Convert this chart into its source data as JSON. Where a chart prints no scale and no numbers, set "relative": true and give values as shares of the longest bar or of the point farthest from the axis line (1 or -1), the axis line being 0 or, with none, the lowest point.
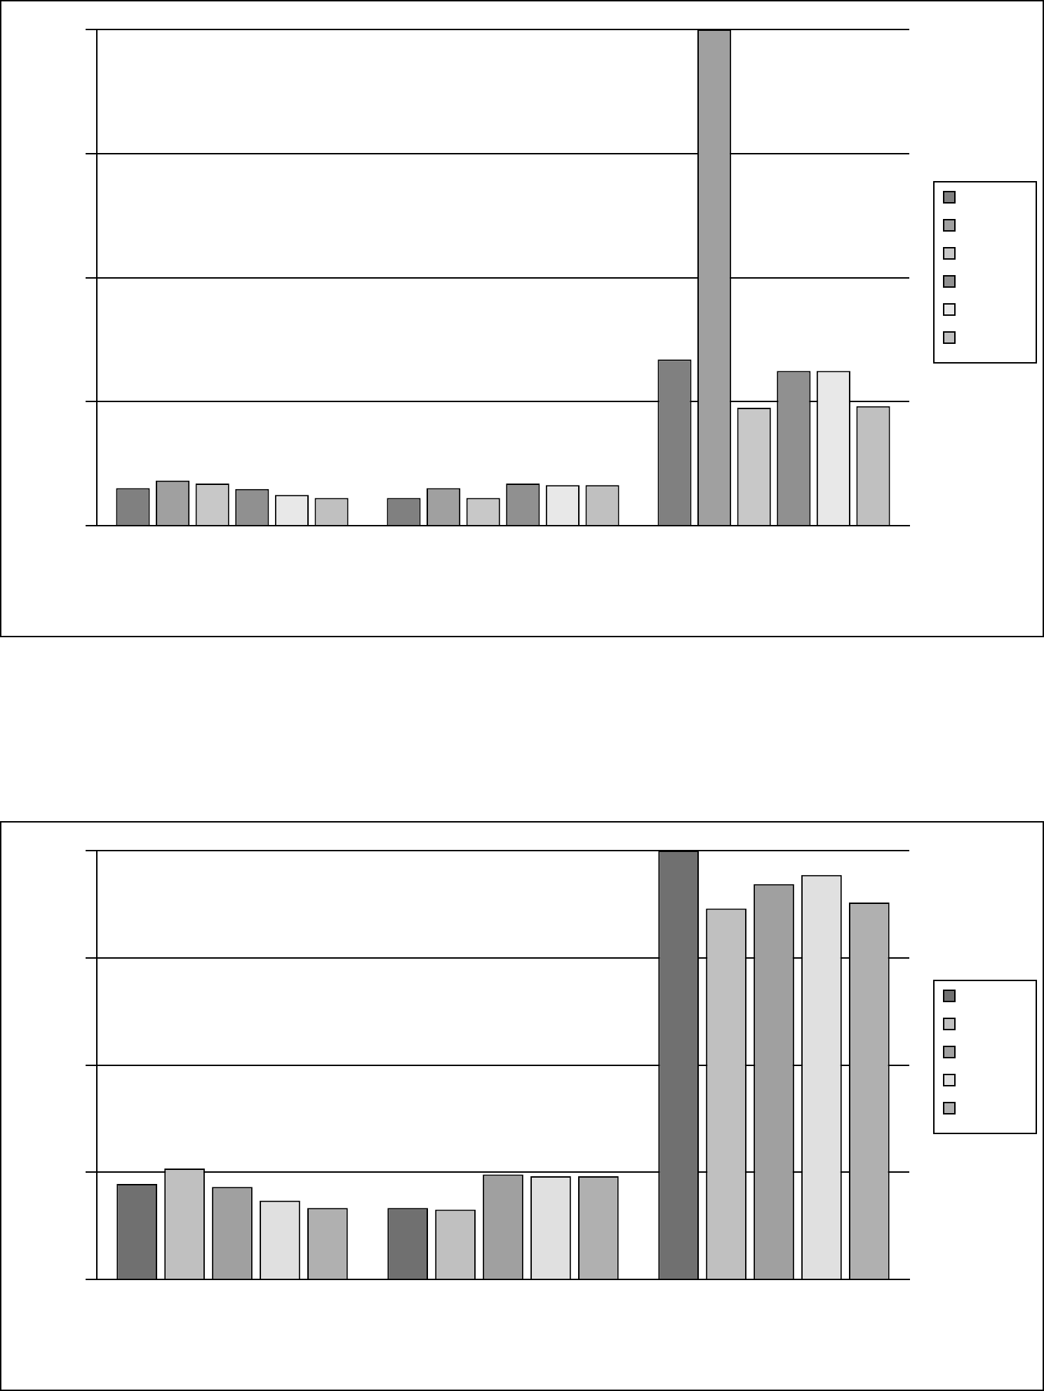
{
  "chart_data": [
    {
      "type": "bar",
      "relative": true,
      "categories": [
        null,
        null,
        null
      ],
      "grid": "y",
      "series": [
        {
          "color": "#808080",
          "values": [
            0.076,
            0.056,
            0.335
          ]
        },
        {
          "color": "#a0a0a0",
          "values": [
            0.091,
            0.076,
            1
          ]
        },
        {
          "color": "#c8c8c8",
          "values": [
            0.085,
            0.056,
            0.238
          ]
        },
        {
          "color": "#909090",
          "values": [
            0.074,
            0.085,
            0.312
          ]
        },
        {
          "color": "#e8e8e8",
          "values": [
            0.062,
            0.082,
            0.312
          ]
        },
        {
          "color": "#c0c0c0",
          "values": [
            0.056,
            0.082,
            0.241
          ]
        }
      ]
    },
    {
      "type": "bar",
      "relative": true,
      "categories": [
        null,
        null,
        null
      ],
      "grid": "y",
      "series": [
        {
          "color": "#707070",
          "values": [
            0.223,
            0.167,
            1
          ]
        },
        {
          "color": "#c0c0c0",
          "values": [
            0.259,
            0.163,
            0.865
          ]
        },
        {
          "color": "#a0a0a0",
          "values": [
            0.216,
            0.245,
            0.922
          ]
        },
        {
          "color": "#e0e0e0",
          "values": [
            0.184,
            0.241,
            0.943
          ]
        },
        {
          "color": "#b0b0b0",
          "values": [
            0.167,
            0.241,
            0.879
          ]
        }
      ]
    }
  ]
}
